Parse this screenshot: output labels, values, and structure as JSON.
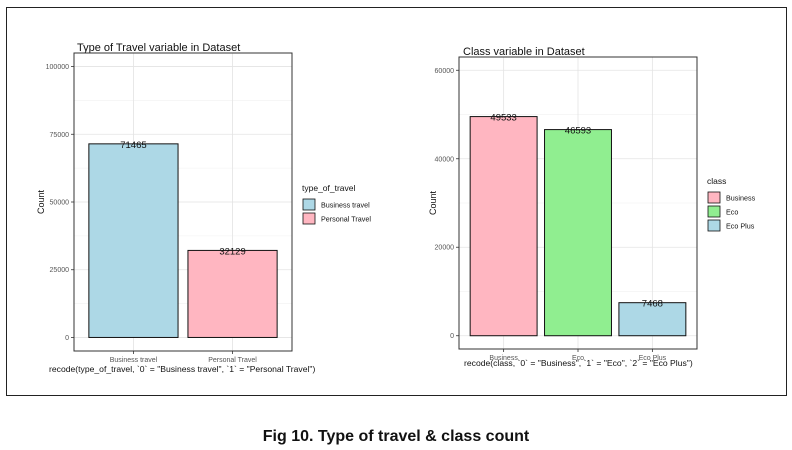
{
  "caption": "Fig 10. Type of travel & class count",
  "chart_data": [
    {
      "type": "bar",
      "title": "Type of Travel variable in Dataset",
      "xlabel": "recode(type_of_travel, `0` = \"Business travel\", `1` = \"Personal Travel\")",
      "ylabel": "Count",
      "categories": [
        "Business travel",
        "Personal Travel"
      ],
      "values": [
        71465,
        32129
      ],
      "value_labels": [
        "71465",
        "32129"
      ],
      "colors": [
        "#add8e6",
        "#ffb6c1"
      ],
      "ylim": [
        0,
        100000
      ],
      "yticks": [
        0,
        25000,
        50000,
        75000,
        100000
      ],
      "ytick_labels": [
        "0",
        "25000",
        "50000",
        "75000",
        "100000"
      ],
      "grid": true,
      "legend": {
        "title": "type_of_travel",
        "position": "right",
        "entries": [
          {
            "label": "Business travel",
            "color": "#add8e6"
          },
          {
            "label": "Personal Travel",
            "color": "#ffb6c1"
          }
        ]
      }
    },
    {
      "type": "bar",
      "title": "Class variable in Dataset",
      "xlabel": "recode(class, `0` = \"Business\", `1` = \"Eco\", `2` = \"Eco Plus\")",
      "ylabel": "Count",
      "categories": [
        "Business",
        "Eco",
        "Eco Plus"
      ],
      "values": [
        49533,
        46593,
        7468
      ],
      "value_labels": [
        "49533",
        "46593",
        "7468"
      ],
      "colors": [
        "#ffb6c1",
        "#90ee90",
        "#add8e6"
      ],
      "ylim": [
        0,
        60000
      ],
      "yticks": [
        0,
        20000,
        40000,
        60000
      ],
      "ytick_labels": [
        "0",
        "20000",
        "40000",
        "60000"
      ],
      "grid": true,
      "legend": {
        "title": "class",
        "position": "right",
        "entries": [
          {
            "label": "Business",
            "color": "#ffb6c1"
          },
          {
            "label": "Eco",
            "color": "#90ee90"
          },
          {
            "label": "Eco Plus",
            "color": "#add8e6"
          }
        ]
      }
    }
  ]
}
